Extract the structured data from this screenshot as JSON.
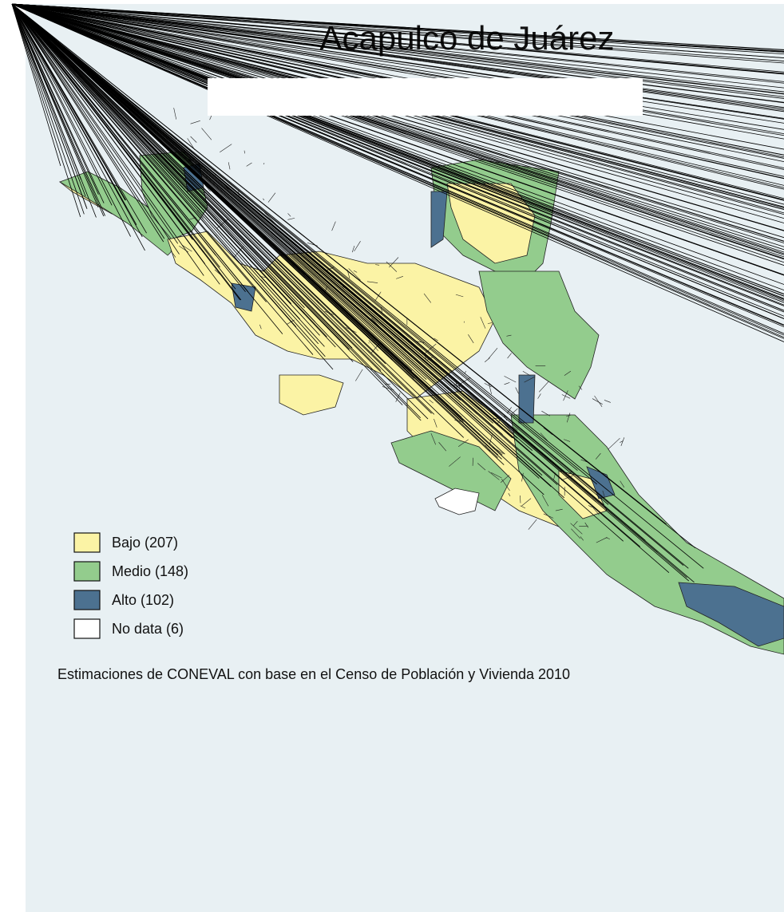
{
  "map": {
    "title": "Acapulco de Juárez",
    "legend": {
      "items": [
        {
          "label": "Bajo (207)",
          "color": "#fbf3a5"
        },
        {
          "label": "Medio (148)",
          "color": "#93cc8d"
        },
        {
          "label": "Alto (102)",
          "color": "#4c7190"
        },
        {
          "label": "No data (6)",
          "color": "#ffffff"
        }
      ]
    },
    "note": "Estimaciones de CONEVAL con base en el Censo de Población y Vivienda 2010"
  }
}
